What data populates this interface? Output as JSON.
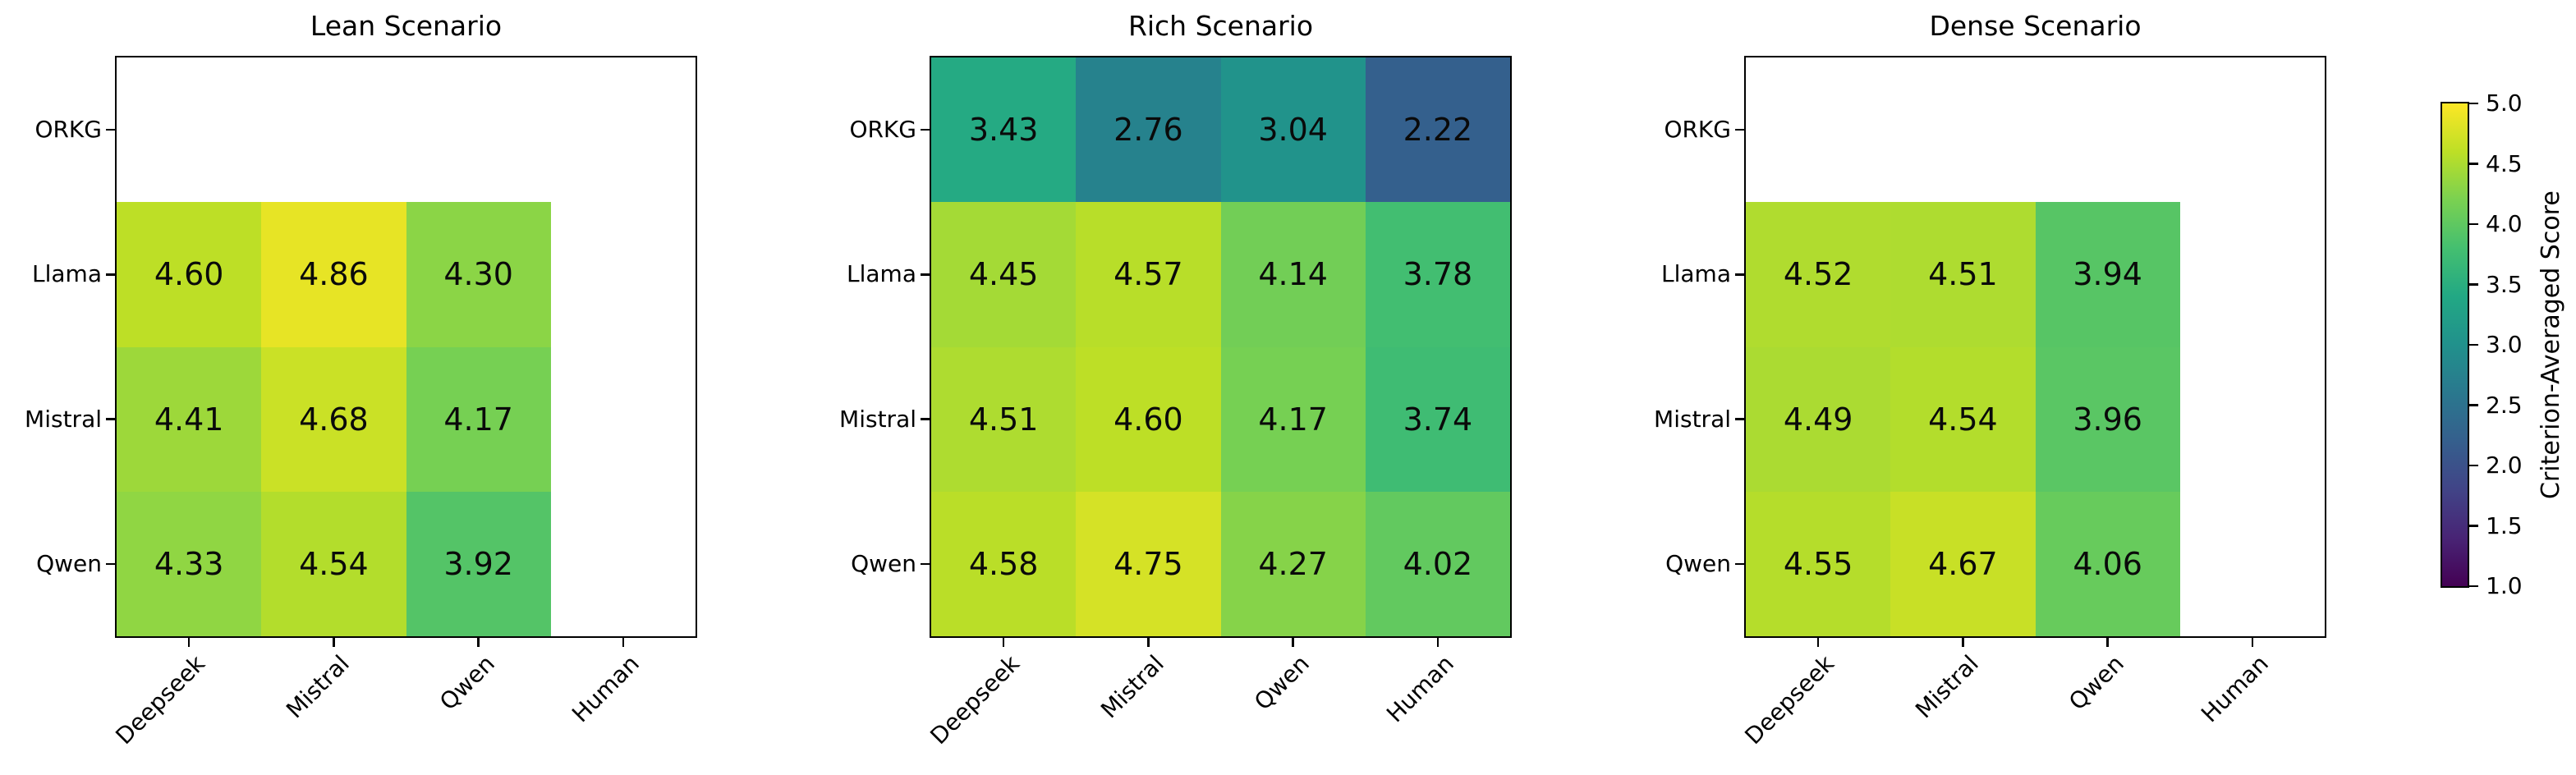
{
  "chart_data": [
    {
      "type": "heatmap",
      "title": "Lean Scenario",
      "rows": [
        "ORKG",
        "Llama",
        "Mistral",
        "Qwen"
      ],
      "columns": [
        "Deepseek",
        "Mistral",
        "Qwen",
        "Human"
      ],
      "values": [
        [
          null,
          null,
          null,
          null
        ],
        [
          4.6,
          4.86,
          4.3,
          null
        ],
        [
          4.41,
          4.68,
          4.17,
          null
        ],
        [
          4.33,
          4.54,
          3.92,
          null
        ]
      ],
      "vmin": 1.0,
      "vmax": 5.0,
      "colormap": "viridis"
    },
    {
      "type": "heatmap",
      "title": "Rich Scenario",
      "rows": [
        "ORKG",
        "Llama",
        "Mistral",
        "Qwen"
      ],
      "columns": [
        "Deepseek",
        "Mistral",
        "Qwen",
        "Human"
      ],
      "values": [
        [
          3.43,
          2.76,
          3.04,
          2.22
        ],
        [
          4.45,
          4.57,
          4.14,
          3.78
        ],
        [
          4.51,
          4.6,
          4.17,
          3.74
        ],
        [
          4.58,
          4.75,
          4.27,
          4.02
        ]
      ],
      "vmin": 1.0,
      "vmax": 5.0,
      "colormap": "viridis"
    },
    {
      "type": "heatmap",
      "title": "Dense Scenario",
      "rows": [
        "ORKG",
        "Llama",
        "Mistral",
        "Qwen"
      ],
      "columns": [
        "Deepseek",
        "Mistral",
        "Qwen",
        "Human"
      ],
      "values": [
        [
          null,
          null,
          null,
          null
        ],
        [
          4.52,
          4.51,
          3.94,
          null
        ],
        [
          4.49,
          4.54,
          3.96,
          null
        ],
        [
          4.55,
          4.67,
          4.06,
          null
        ]
      ],
      "vmin": 1.0,
      "vmax": 5.0,
      "colormap": "viridis"
    }
  ],
  "colorbar": {
    "label": "Criterion-Averaged Score",
    "tick_labels": [
      "5.0",
      "4.5",
      "4.0",
      "3.5",
      "3.0",
      "2.5",
      "2.0",
      "1.5",
      "1.0"
    ],
    "tick_values": [
      5.0,
      4.5,
      4.0,
      3.5,
      3.0,
      2.5,
      2.0,
      1.5,
      1.0
    ],
    "vmin": 1.0,
    "vmax": 5.0,
    "gradient_hex": [
      "#440154",
      "#482475",
      "#414487",
      "#355f8d",
      "#2a788e",
      "#21918c",
      "#22a884",
      "#44bf70",
      "#7ad151",
      "#bddf26",
      "#fde725"
    ]
  },
  "colors": {
    "annotation_text": "#0a0a0a",
    "axis_line": "#000000",
    "background": "#ffffff"
  }
}
